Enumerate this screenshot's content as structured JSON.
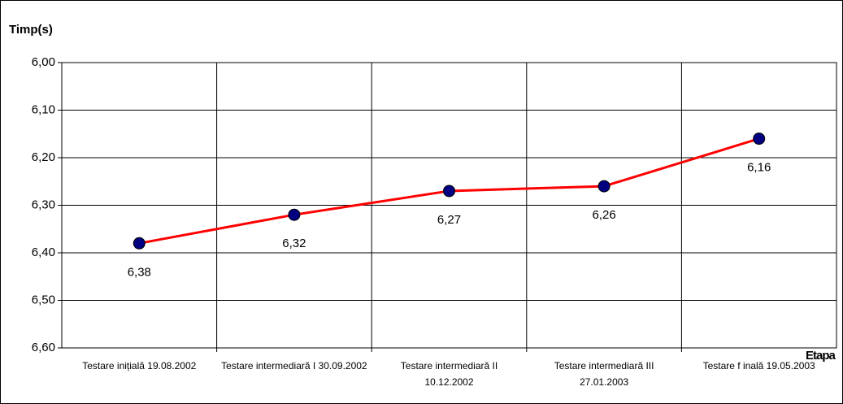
{
  "chart_data": {
    "type": "line",
    "y_axis_label": "Timp(s)",
    "x_axis_label": "Etapa",
    "categories": [
      "Testare inițială  19.08.2002",
      "Testare intermediară I 30.09.2002",
      "Testare intermediară II 10.12.2002",
      "Testare intermediară III 27.01.2003",
      "Testare f inală  19.05.2003"
    ],
    "series": [
      {
        "name": "Timp(s)",
        "color": "#ff0000",
        "marker_color": "#000080",
        "values": [
          6.38,
          6.32,
          6.27,
          6.26,
          6.16
        ],
        "value_labels": [
          "6,38",
          "6,32",
          "6,27",
          "6,26",
          "6,16"
        ]
      }
    ],
    "ylim": [
      6.6,
      6.0
    ],
    "yticks": [
      {
        "value": 6.0,
        "label": "6,00"
      },
      {
        "value": 6.1,
        "label": "6,10"
      },
      {
        "value": 6.2,
        "label": "6,20"
      },
      {
        "value": 6.3,
        "label": "6,30"
      },
      {
        "value": 6.4,
        "label": "6,40"
      },
      {
        "value": 6.5,
        "label": "6,50"
      },
      {
        "value": 6.6,
        "label": "6,60"
      }
    ],
    "grid": true
  }
}
